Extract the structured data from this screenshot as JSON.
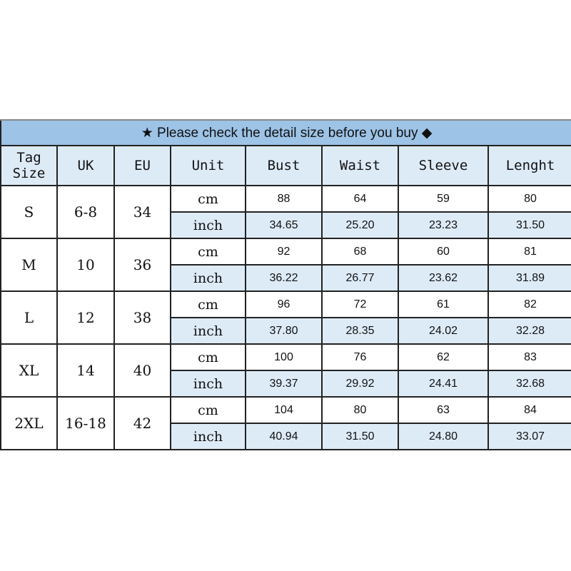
{
  "title": {
    "icon_left": "star-icon",
    "text": "Please check the detail size before you buy",
    "icon_right": "diamond-icon"
  },
  "headers": [
    "Tag Size",
    "UK",
    "EU",
    "Unit",
    "Bust",
    "Waist",
    "Sleeve",
    "Lenght"
  ],
  "rows": [
    {
      "tag": "S",
      "uk": "6-8",
      "eu": "34",
      "cm": [
        "88",
        "64",
        "59",
        "80"
      ],
      "inch": [
        "34.65",
        "25.20",
        "23.23",
        "31.50"
      ]
    },
    {
      "tag": "M",
      "uk": "10",
      "eu": "36",
      "cm": [
        "92",
        "68",
        "60",
        "81"
      ],
      "inch": [
        "36.22",
        "26.77",
        "23.62",
        "31.89"
      ]
    },
    {
      "tag": "L",
      "uk": "12",
      "eu": "38",
      "cm": [
        "96",
        "72",
        "61",
        "82"
      ],
      "inch": [
        "37.80",
        "28.35",
        "24.02",
        "32.28"
      ]
    },
    {
      "tag": "XL",
      "uk": "14",
      "eu": "40",
      "cm": [
        "100",
        "76",
        "62",
        "83"
      ],
      "inch": [
        "39.37",
        "29.92",
        "24.41",
        "32.68"
      ]
    },
    {
      "tag": "2XL",
      "uk": "16-18",
      "eu": "42",
      "cm": [
        "104",
        "80",
        "63",
        "84"
      ],
      "inch": [
        "40.94",
        "31.50",
        "24.80",
        "33.07"
      ]
    }
  ],
  "units": {
    "cm": "cm",
    "inch": "inch"
  },
  "colors": {
    "title_bg": "#9dc3e6",
    "header_bg": "#ddebf7",
    "inch_row_bg": "#ddebf7"
  }
}
